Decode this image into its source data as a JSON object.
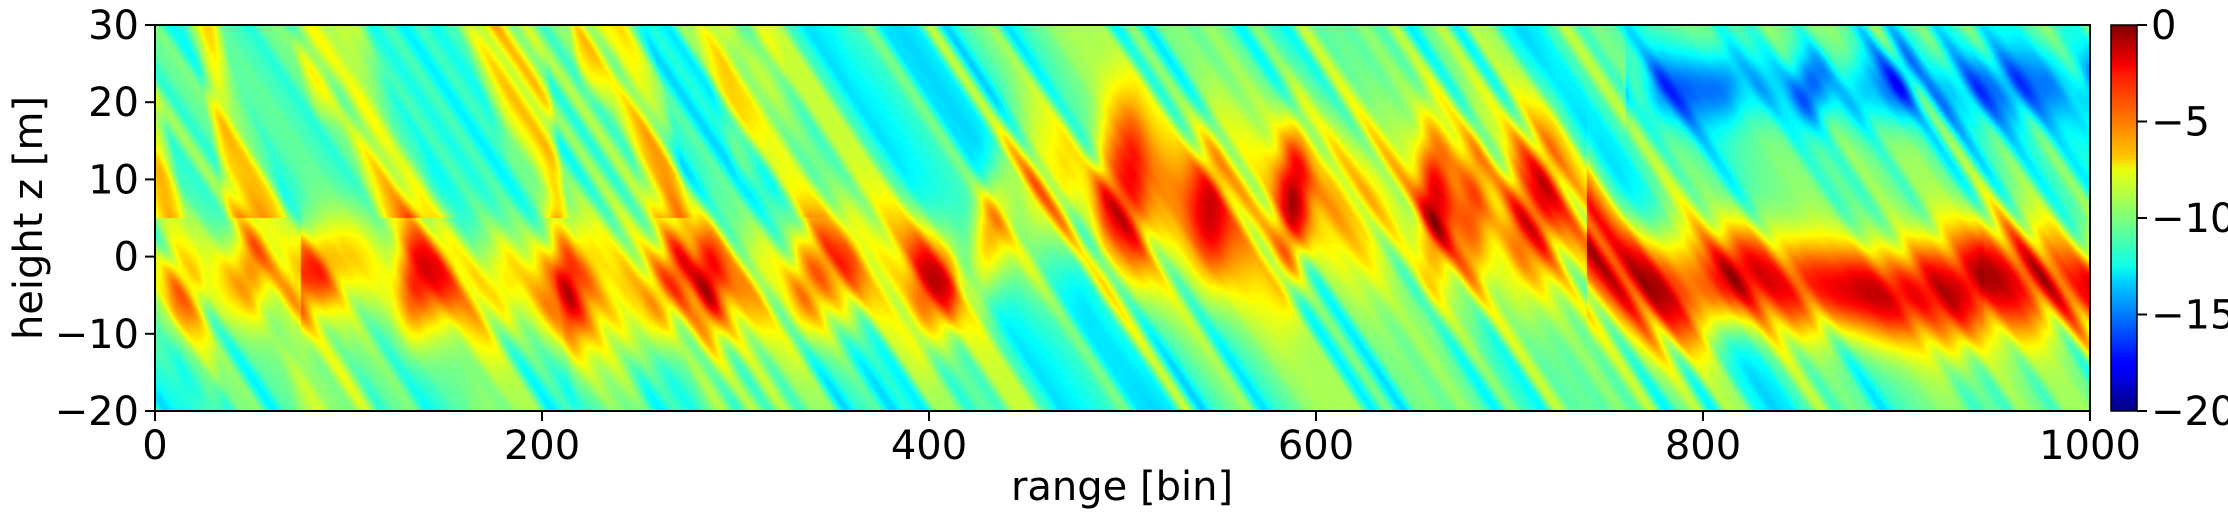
{
  "chart_data": {
    "type": "heatmap",
    "title": "",
    "xlabel": "range [bin]",
    "ylabel": "height z [m]",
    "xlim": [
      0,
      1000
    ],
    "ylim": [
      -20,
      30
    ],
    "x_ticks": [
      0,
      200,
      400,
      600,
      800,
      1000
    ],
    "x_tick_labels": [
      "0",
      "200",
      "400",
      "600",
      "800",
      "1000"
    ],
    "y_ticks": [
      -20,
      -10,
      0,
      10,
      20,
      30
    ],
    "y_tick_labels": [
      "−20",
      "−10",
      "0",
      "10",
      "20",
      "30"
    ],
    "colorbar": {
      "colormap": "jet",
      "vmin": -20,
      "vmax": 0,
      "ticks": [
        0,
        -5,
        -10,
        -15,
        -20
      ],
      "tick_labels": [
        "0",
        "−5",
        "−10",
        "−15",
        "−20"
      ]
    },
    "grid": false,
    "features": [
      {
        "description": "strong band",
        "x_range": [
          80,
          390
        ],
        "z_center": -3,
        "level": -2
      },
      {
        "description": "elevated band",
        "x_range": [
          430,
          740
        ],
        "z_center": 7,
        "level": -2
      },
      {
        "description": "strong band",
        "x_range": [
          740,
          1000
        ],
        "z_center": -3,
        "level": -1
      },
      {
        "description": "weak patch",
        "x_range": [
          780,
          840
        ],
        "z_center": 25,
        "level": -15
      }
    ]
  }
}
